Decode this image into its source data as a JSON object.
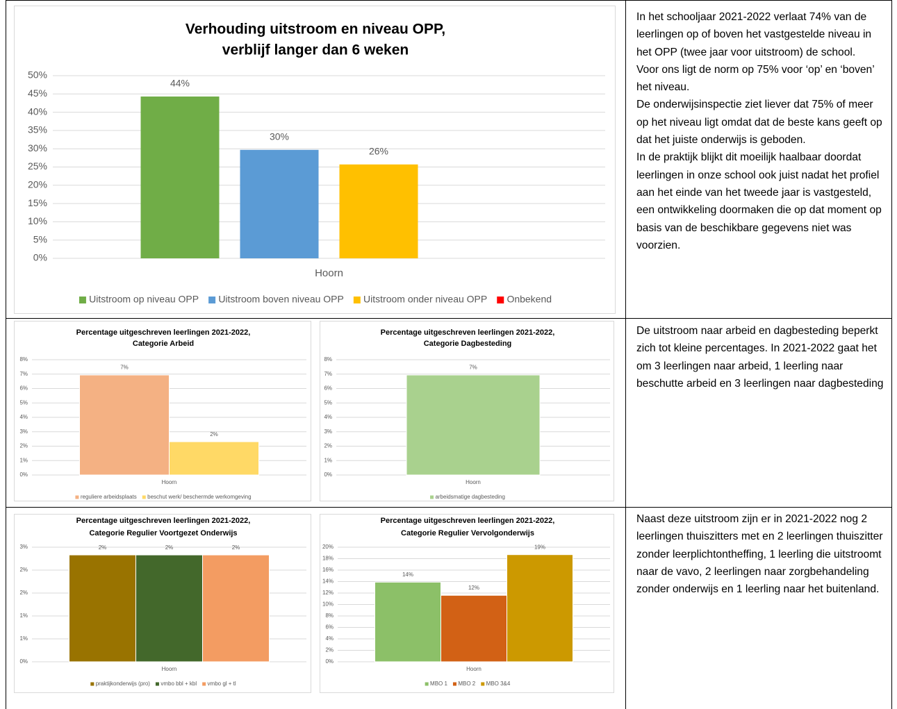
{
  "chart_data": [
    {
      "type": "bar",
      "title": [
        "Verhouding uitstroom en niveau OPP,",
        "verblijf langer dan 6 weken"
      ],
      "categories": [
        "Hoorn"
      ],
      "series": [
        {
          "name": "Uitstroom op niveau OPP",
          "color": "#70ad47",
          "values": [
            44.3
          ],
          "value_labels": [
            "44%"
          ]
        },
        {
          "name": "Uitstroom boven niveau OPP",
          "color": "#5b9bd5",
          "values": [
            29.7
          ],
          "value_labels": [
            "30%"
          ]
        },
        {
          "name": "Uitstroom onder niveau OPP",
          "color": "#ffc000",
          "values": [
            25.7
          ],
          "value_labels": [
            "26%"
          ]
        },
        {
          "name": "Onbekend",
          "color": "#ff0000",
          "values": [
            0
          ],
          "value_labels": [
            null
          ]
        }
      ],
      "ylim": [
        0,
        50
      ],
      "yticks": [
        {
          "value": 0,
          "label": "0%"
        },
        {
          "value": 5,
          "label": "5%"
        },
        {
          "value": 10,
          "label": "10%"
        },
        {
          "value": 15,
          "label": "15%"
        },
        {
          "value": 20,
          "label": "20%"
        },
        {
          "value": 25,
          "label": "25%"
        },
        {
          "value": 30,
          "label": "30%"
        },
        {
          "value": 35,
          "label": "35%"
        },
        {
          "value": 40,
          "label": "40%"
        },
        {
          "value": 45,
          "label": "45%"
        },
        {
          "value": 50,
          "label": "50%"
        }
      ],
      "grid": true,
      "legend": "bottom"
    },
    {
      "type": "bar",
      "title": [
        "Percentage uitgeschreven leerlingen 2021-2022,",
        "Categorie Arbeid"
      ],
      "categories": [
        "Hoorn"
      ],
      "series": [
        {
          "name": "reguliere arbeidsplaats",
          "color": "#f4b183",
          "values": [
            6.94
          ],
          "value_labels": [
            "7%"
          ]
        },
        {
          "name": "beschut werk/ beschermde werkomgeving",
          "color": "#ffd966",
          "values": [
            2.31
          ],
          "value_labels": [
            "2%"
          ]
        }
      ],
      "ylim": [
        0,
        8
      ],
      "yticks": [
        {
          "value": 0,
          "label": "0%"
        },
        {
          "value": 1,
          "label": "1%"
        },
        {
          "value": 2,
          "label": "2%"
        },
        {
          "value": 3,
          "label": "3%"
        },
        {
          "value": 4,
          "label": "4%"
        },
        {
          "value": 5,
          "label": "5%"
        },
        {
          "value": 6,
          "label": "6%"
        },
        {
          "value": 7,
          "label": "7%"
        },
        {
          "value": 8,
          "label": "8%"
        }
      ],
      "grid": true,
      "legend": "bottom"
    },
    {
      "type": "bar",
      "title": [
        "Percentage uitgeschreven leerlingen 2021-2022,",
        "Categorie Dagbesteding"
      ],
      "categories": [
        "Hoorn"
      ],
      "series": [
        {
          "name": "arbeidsmatige dagbesteding",
          "color": "#a9d18e",
          "values": [
            6.94
          ],
          "value_labels": [
            "7%"
          ]
        }
      ],
      "ylim": [
        0,
        8
      ],
      "yticks": [
        {
          "value": 0,
          "label": "0%"
        },
        {
          "value": 1,
          "label": "1%"
        },
        {
          "value": 2,
          "label": "2%"
        },
        {
          "value": 3,
          "label": "3%"
        },
        {
          "value": 4,
          "label": "4%"
        },
        {
          "value": 5,
          "label": "5%"
        },
        {
          "value": 6,
          "label": "6%"
        },
        {
          "value": 7,
          "label": "7%"
        },
        {
          "value": 8,
          "label": "8%"
        }
      ],
      "grid": true,
      "legend": "bottom"
    },
    {
      "type": "bar",
      "title": [
        "Percentage uitgeschreven leerlingen 2021-2022,",
        "Categorie Regulier Voortgezet Onderwijs"
      ],
      "categories": [
        "Hoorn"
      ],
      "series": [
        {
          "name": "praktijkonderwijs (pro)",
          "color": "#997300",
          "values": [
            2.49
          ],
          "value_labels": [
            "2%"
          ]
        },
        {
          "name": "vmbo bbl + kbl",
          "color": "#43682b",
          "values": [
            2.49
          ],
          "value_labels": [
            "2%"
          ]
        },
        {
          "name": "vmbo gl + tl",
          "color": "#f39c62",
          "values": [
            2.49
          ],
          "value_labels": [
            "2%"
          ]
        }
      ],
      "ylim": [
        0,
        2.67
      ],
      "yticks": [
        {
          "value": 0,
          "label": "0%"
        },
        {
          "value": 0.534,
          "label": "1%"
        },
        {
          "value": 1.068,
          "label": "1%"
        },
        {
          "value": 1.602,
          "label": "2%"
        },
        {
          "value": 2.136,
          "label": "2%"
        },
        {
          "value": 2.67,
          "label": "3%"
        }
      ],
      "grid": true,
      "legend": "bottom"
    },
    {
      "type": "bar",
      "title": [
        "Percentage uitgeschreven leerlingen 2021-2022,",
        "Categorie Regulier Vervolgonderwijs"
      ],
      "categories": [
        "Hoorn"
      ],
      "series": [
        {
          "name": "MBO 1",
          "color": "#8cc068",
          "values": [
            13.9
          ],
          "value_labels": [
            "14%"
          ]
        },
        {
          "name": "MBO 2",
          "color": "#d26115",
          "values": [
            11.6
          ],
          "value_labels": [
            "12%"
          ]
        },
        {
          "name": "MBO 3&4",
          "color": "#cc9900",
          "values": [
            18.7
          ],
          "value_labels": [
            "19%"
          ]
        }
      ],
      "ylim": [
        0,
        20
      ],
      "yticks": [
        {
          "value": 0,
          "label": "0%"
        },
        {
          "value": 2,
          "label": "2%"
        },
        {
          "value": 4,
          "label": "4%"
        },
        {
          "value": 6,
          "label": "6%"
        },
        {
          "value": 8,
          "label": "8%"
        },
        {
          "value": 10,
          "label": "10%"
        },
        {
          "value": 12,
          "label": "12%"
        },
        {
          "value": 14,
          "label": "14%"
        },
        {
          "value": 16,
          "label": "16%"
        },
        {
          "value": 18,
          "label": "18%"
        },
        {
          "value": 20,
          "label": "20%"
        }
      ],
      "grid": true,
      "legend": "bottom"
    }
  ],
  "cells": [
    {
      "paragraphs": [
        "In het schooljaar 2021-2022 verlaat 74% van de leerlingen op of boven het vastgestelde niveau in het OPP (twee jaar voor uitstroom) de school.",
        "Voor ons ligt de norm op 75% voor ‘op’ en ‘boven’ het niveau.",
        "De onderwijsinspectie ziet liever dat 75% of meer op het niveau ligt omdat dat de beste kans geeft op dat het juiste onderwijs is geboden.",
        "In de praktijk blijkt dit moeilijk haalbaar doordat leerlingen in onze school ook juist nadat het profiel aan het einde van het tweede jaar is vastgesteld, een ontwikkeling doormaken die op dat moment op basis van de beschikbare gegevens niet was voorzien."
      ]
    },
    {
      "paragraphs": [
        "De uitstroom naar arbeid en dagbesteding beperkt zich tot kleine percentages. In 2021-2022 gaat het om 3 leerlingen naar arbeid, 1 leerling naar beschutte arbeid en 3 leerlingen naar dagbesteding"
      ]
    },
    {
      "paragraphs": [
        "Naast deze uitstroom zijn er in 2021-2022 nog 2 leerlingen thuiszitters met en 2 leerlingen thuiszitter zonder leerplichtontheffing, 1 leerling die uitstroomt naar de vavo, 2 leerlingen naar zorgbehandeling zonder onderwijs en 1 leerling naar het buitenland."
      ]
    }
  ]
}
